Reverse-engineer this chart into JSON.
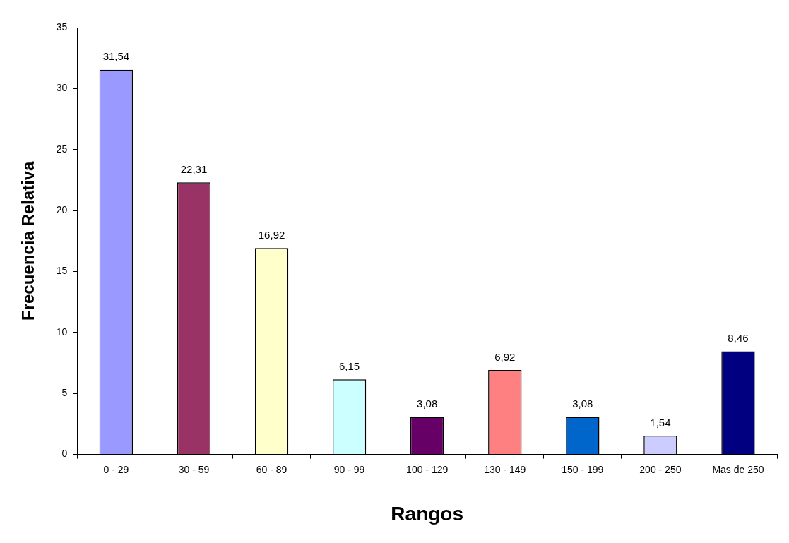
{
  "chart_data": {
    "type": "bar",
    "xlabel": "Rangos",
    "ylabel": "Frecuencia Relativa",
    "categories": [
      "0 - 29",
      "30 - 59",
      "60 - 89",
      "90 - 99",
      "100 - 129",
      "130 - 149",
      "150 - 199",
      "200 - 250",
      "Mas de 250"
    ],
    "values": [
      31.54,
      22.31,
      16.92,
      6.15,
      3.08,
      6.92,
      3.08,
      1.54,
      8.46
    ],
    "colors": [
      "#9999ff",
      "#993366",
      "#ffffcc",
      "#ccffff",
      "#660066",
      "#ff8080",
      "#0066cc",
      "#ccccff",
      "#000080"
    ],
    "value_labels": [
      "31,54",
      "22,31",
      "16,92",
      "6,15",
      "3,08",
      "6,92",
      "3,08",
      "1,54",
      "8,46"
    ],
    "ylim": [
      0,
      35
    ],
    "yticks": [
      0,
      5,
      10,
      15,
      20,
      25,
      30,
      35
    ],
    "grid": false,
    "legend": false
  }
}
